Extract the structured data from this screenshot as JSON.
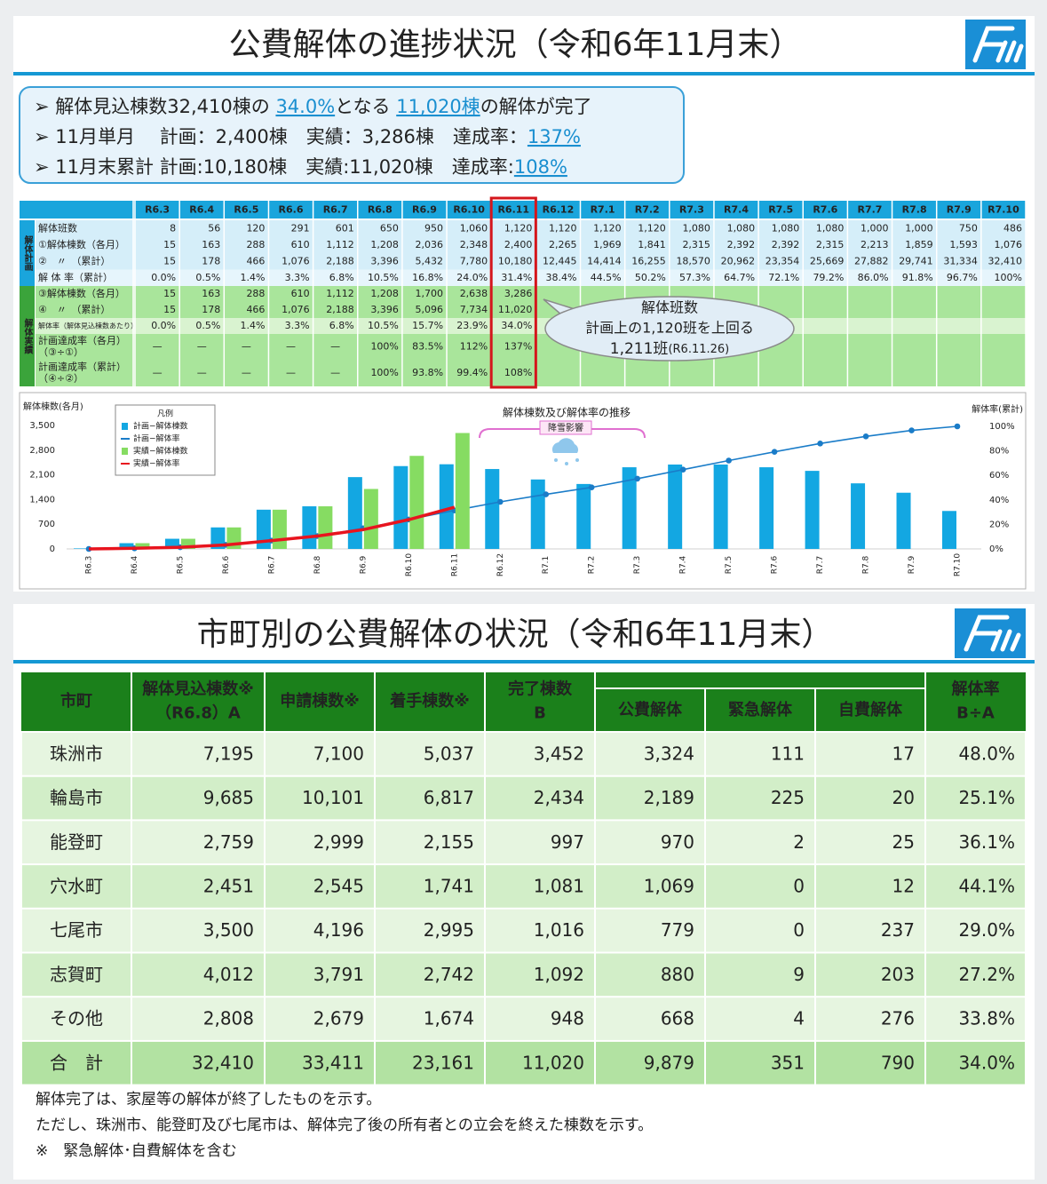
{
  "slide1": {
    "title": "公費解体の進捗状況（令和6年11月末）",
    "summary": [
      [
        {
          "text": "➢ 解体見込棟数32,410棟の "
        },
        {
          "text": "34.0%",
          "link": true
        },
        {
          "text": "となる "
        },
        {
          "text": "11,020棟",
          "link": true
        },
        {
          "text": "の解体が完了"
        }
      ],
      [
        {
          "text": "➢ 11月単月　 計画：2,400棟　実績：3,286棟　達成率："
        },
        {
          "text": "137%",
          "link": true
        }
      ],
      [
        {
          "text": "➢ 11月末累計 計画:10,180棟　実績:11,020棟　達成率:"
        },
        {
          "text": "108%",
          "link": true
        }
      ]
    ],
    "table": {
      "columns": [
        "R6.3",
        "R6.4",
        "R6.5",
        "R6.6",
        "R6.7",
        "R6.8",
        "R6.9",
        "R6.10",
        "R6.11",
        "R6.12",
        "R7.1",
        "R7.2",
        "R7.3",
        "R7.4",
        "R7.5",
        "R7.6",
        "R7.7",
        "R7.8",
        "R7.9",
        "R7.10"
      ],
      "groups": [
        "解体計画",
        "解体実績"
      ],
      "rows": [
        {
          "label": [
            "解体班数"
          ],
          "cells": [
            "8",
            "56",
            "120",
            "291",
            "601",
            "650",
            "950",
            "1,060",
            "1,120",
            "1,120",
            "1,120",
            "1,120",
            "1,080",
            "1,080",
            "1,080",
            "1,080",
            "1,000",
            "1,000",
            "750",
            "486"
          ]
        },
        {
          "label": [
            "①解体棟数（各月）"
          ],
          "cells": [
            "15",
            "163",
            "288",
            "610",
            "1,112",
            "1,208",
            "2,036",
            "2,348",
            "2,400",
            "2,265",
            "1,969",
            "1,841",
            "2,315",
            "2,392",
            "2,392",
            "2,315",
            "2,213",
            "1,859",
            "1,593",
            "1,076"
          ]
        },
        {
          "label": [
            "②　〃　（累計）"
          ],
          "cells": [
            "15",
            "178",
            "466",
            "1,076",
            "2,188",
            "3,396",
            "5,432",
            "7,780",
            "10,180",
            "12,445",
            "14,414",
            "16,255",
            "18,570",
            "20,962",
            "23,354",
            "25,669",
            "27,882",
            "29,741",
            "31,334",
            "32,410"
          ]
        },
        {
          "label": [
            "解 体 率（累計）"
          ],
          "cells": [
            "0.0%",
            "0.5%",
            "1.4%",
            "3.3%",
            "6.8%",
            "10.5%",
            "16.8%",
            "24.0%",
            "31.4%",
            "38.4%",
            "44.5%",
            "50.2%",
            "57.3%",
            "64.7%",
            "72.1%",
            "79.2%",
            "86.0%",
            "91.8%",
            "96.7%",
            "100%"
          ]
        },
        {
          "label": [
            "③解体棟数（各月）"
          ],
          "cells": [
            "15",
            "163",
            "288",
            "610",
            "1,112",
            "1,208",
            "1,700",
            "2,638",
            "3,286"
          ]
        },
        {
          "label": [
            "④　〃　（累計）"
          ],
          "cells": [
            "15",
            "178",
            "466",
            "1,076",
            "2,188",
            "3,396",
            "5,096",
            "7,734",
            "11,020"
          ]
        },
        {
          "label": [
            "解体率（解体見込棟数あたり）"
          ],
          "cells": [
            "0.0%",
            "0.5%",
            "1.4%",
            "3.3%",
            "6.8%",
            "10.5%",
            "15.7%",
            "23.9%",
            "34.0%"
          ]
        },
        {
          "label": [
            "計画達成率（各月）",
            "（③÷①）"
          ],
          "cells": [
            "—",
            "—",
            "—",
            "—",
            "—",
            "100%",
            "83.5%",
            "112%",
            "137%"
          ]
        },
        {
          "label": [
            "計画達成率（累計）",
            "（④÷②）"
          ],
          "cells": [
            "—",
            "—",
            "—",
            "—",
            "—",
            "100%",
            "93.8%",
            "99.4%",
            "108%"
          ]
        }
      ]
    },
    "callout": [
      "解体班数",
      "計画上の1,120班を上回る",
      "1,211班",
      "(R6.11.26)"
    ],
    "chart": {
      "type": "bar",
      "title": "解体棟数及び解体率の推移",
      "y_label": "解体棟数(各月)",
      "y2_label": "解体率(累計)",
      "annotation": "降雪影響",
      "legend_title": "凡例",
      "categories": [
        "R6.3",
        "R6.4",
        "R6.5",
        "R6.6",
        "R6.7",
        "R6.8",
        "R6.9",
        "R6.10",
        "R6.11",
        "R6.12",
        "R7.1",
        "R7.2",
        "R7.3",
        "R7.4",
        "R7.5",
        "R7.6",
        "R7.7",
        "R7.8",
        "R7.9",
        "R7.10"
      ],
      "ylim": [
        0,
        3500
      ],
      "yticks": [
        0,
        700,
        {
          "value": 1400,
          "label": "1,400"
        },
        {
          "value": 2100,
          "label": "2,100"
        },
        {
          "value": 2800,
          "label": "2,800"
        },
        {
          "value": 3500,
          "label": "3,500"
        }
      ],
      "y2lim": [
        0,
        100
      ],
      "y2ticks": [
        {
          "value": 0,
          "label": "0%"
        },
        {
          "value": 20,
          "label": "20%"
        },
        {
          "value": 40,
          "label": "40%"
        },
        {
          "value": 60,
          "label": "60%"
        },
        {
          "value": 80,
          "label": "80%"
        },
        {
          "value": 100,
          "label": "100%"
        }
      ],
      "series": [
        {
          "name": "計画−解体棟数",
          "kind": "bar",
          "color": "#13a7e2",
          "values": [
            15,
            163,
            288,
            610,
            1112,
            1208,
            2036,
            2348,
            2400,
            2265,
            1969,
            1841,
            2315,
            2392,
            2392,
            2315,
            2213,
            1859,
            1593,
            1076
          ]
        },
        {
          "name": "計画−解体率",
          "kind": "line",
          "axis": "y2",
          "color": "#1a7cc8",
          "values": [
            0.0,
            0.5,
            1.4,
            3.3,
            6.8,
            10.5,
            16.8,
            24.0,
            31.4,
            38.4,
            44.5,
            50.2,
            57.3,
            64.7,
            72.1,
            79.2,
            86.0,
            91.8,
            96.7,
            100
          ]
        },
        {
          "name": "実績−解体棟数",
          "kind": "bar",
          "color": "#86dc62",
          "values": [
            15,
            163,
            288,
            610,
            1112,
            1208,
            1700,
            2638,
            3286
          ]
        },
        {
          "name": "実績−解体率",
          "kind": "line",
          "axis": "y2",
          "color": "#e8141e",
          "values": [
            0.0,
            0.5,
            1.4,
            3.3,
            6.8,
            10.5,
            15.7,
            23.9,
            34.0
          ]
        }
      ]
    }
  },
  "slide2": {
    "title": "市町別の公費解体の状況（令和6年11月末）",
    "table": {
      "header": [
        [
          "市町"
        ],
        [
          "解体見込棟数※",
          "（R6.8）A"
        ],
        [
          "申請棟数※"
        ],
        [
          "着手棟数※"
        ],
        [
          "完了棟数",
          "B"
        ],
        [
          "解体率",
          "B÷A"
        ]
      ],
      "sub": [
        "公費解体",
        "緊急解体",
        "自費解体"
      ],
      "rows": [
        [
          "珠洲市",
          "7,195",
          "7,100",
          "5,037",
          "3,452",
          "3,324",
          "111",
          "17",
          "48.0%"
        ],
        [
          "輪島市",
          "9,685",
          "10,101",
          "6,817",
          "2,434",
          "2,189",
          "225",
          "20",
          "25.1%"
        ],
        [
          "能登町",
          "2,759",
          "2,999",
          "2,155",
          "997",
          "970",
          "2",
          "25",
          "36.1%"
        ],
        [
          "穴水町",
          "2,451",
          "2,545",
          "1,741",
          "1,081",
          "1,069",
          "0",
          "12",
          "44.1%"
        ],
        [
          "七尾市",
          "3,500",
          "4,196",
          "2,995",
          "1,016",
          "779",
          "0",
          "237",
          "29.0%"
        ],
        [
          "志賀町",
          "4,012",
          "3,791",
          "2,742",
          "1,092",
          "880",
          "9",
          "203",
          "27.2%"
        ],
        [
          "その他",
          "2,808",
          "2,679",
          "1,674",
          "948",
          "668",
          "4",
          "276",
          "33.8%"
        ],
        [
          "合　計",
          "32,410",
          "33,411",
          "23,161",
          "11,020",
          "9,879",
          "351",
          "790",
          "34.0%"
        ]
      ]
    },
    "notes": [
      "解体完了は、家屋等の解体が終了したものを示す。",
      "ただし、珠洲市、能登町及び七尾市は、解体完了後の所有者との立会を終えた棟数を示す。",
      "※　緊急解体･自費解体を含む"
    ]
  }
}
